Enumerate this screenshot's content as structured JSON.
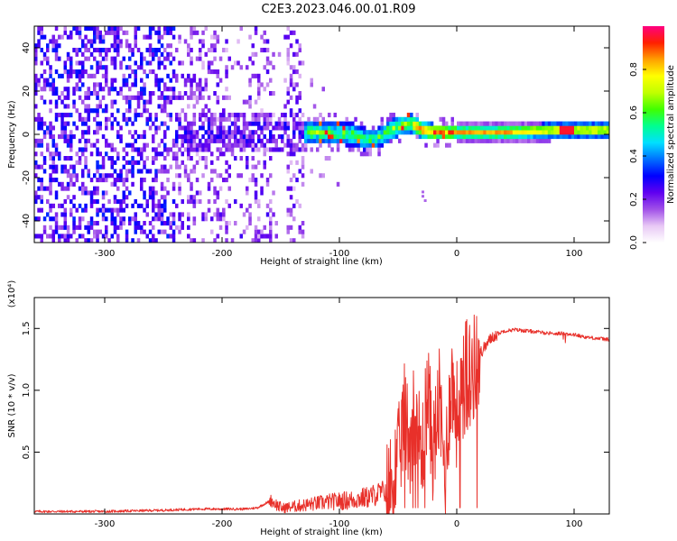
{
  "title": "C2E3.2023.046.00.01.R09",
  "chart_data": [
    {
      "type": "heatmap",
      "xlabel": "Height of straight line (km)",
      "ylabel": "Frequency (Hz)",
      "xlim": [
        -360,
        130
      ],
      "ylim": [
        -50,
        50
      ],
      "xticks": [
        -300,
        -200,
        -100,
        0,
        100
      ],
      "yticks": [
        -40,
        -20,
        0,
        20,
        40
      ],
      "colorbar": {
        "label": "Normalized spectral amplitude",
        "range": [
          0.0,
          1.0
        ],
        "ticks": [
          0.0,
          0.2,
          0.4,
          0.6,
          0.8
        ],
        "colors": [
          "#ffffff",
          "#e8c8f5",
          "#a050e8",
          "#6000f0",
          "#0000ff",
          "#0070ff",
          "#00e0ff",
          "#00ff90",
          "#40ff00",
          "#c0ff00",
          "#ffff00",
          "#ffa000",
          "#ff2000",
          "#ff0080"
        ]
      },
      "ridge": [
        {
          "x": -240,
          "y": 0
        },
        {
          "x": -200,
          "y": 0
        },
        {
          "x": -150,
          "y": 0
        },
        {
          "x": -110,
          "y": 0
        },
        {
          "x": -90,
          "y": -1
        },
        {
          "x": -80,
          "y": -3
        },
        {
          "x": -70,
          "y": -3
        },
        {
          "x": -60,
          "y": 0
        },
        {
          "x": -50,
          "y": 3
        },
        {
          "x": -40,
          "y": 4
        },
        {
          "x": -30,
          "y": 1
        },
        {
          "x": -20,
          "y": 0
        },
        {
          "x": 0,
          "y": 0
        },
        {
          "x": 40,
          "y": 0
        },
        {
          "x": 80,
          "y": 1
        },
        {
          "x": 100,
          "y": 1
        },
        {
          "x": 130,
          "y": 1
        }
      ]
    },
    {
      "type": "line",
      "xlabel": "Height of straight line (km)",
      "ylabel": "SNR (10 * v/v)",
      "multiplier": "(x10⁴)",
      "xlim": [
        -360,
        130
      ],
      "ylim": [
        0,
        1.75
      ],
      "xticks": [
        -300,
        -200,
        -100,
        0,
        100
      ],
      "yticks": [
        0.5,
        1.0,
        1.5
      ],
      "color": "#e8302a",
      "series": [
        {
          "x": [
            -360,
            -300,
            -250,
            -220,
            -200,
            -180,
            -170,
            -160,
            -150,
            -130,
            -110,
            -90,
            -75,
            -60,
            -50,
            -45,
            -40,
            -35,
            -30,
            -25,
            -20,
            -15,
            -10,
            -5,
            0,
            5,
            10,
            15,
            20,
            30,
            40,
            50,
            60,
            70,
            80,
            90,
            100,
            110,
            120,
            130
          ],
          "values": [
            0.02,
            0.02,
            0.03,
            0.04,
            0.04,
            0.04,
            0.05,
            0.1,
            0.03,
            0.05,
            0.07,
            0.08,
            0.1,
            0.15,
            0.4,
            0.8,
            0.6,
            0.9,
            0.4,
            1.0,
            0.5,
            0.9,
            0.3,
            1.1,
            0.8,
            1.0,
            1.1,
            1.2,
            1.3,
            1.43,
            1.48,
            1.49,
            1.48,
            1.47,
            1.46,
            1.46,
            1.45,
            1.43,
            1.42,
            1.41
          ]
        }
      ]
    }
  ]
}
